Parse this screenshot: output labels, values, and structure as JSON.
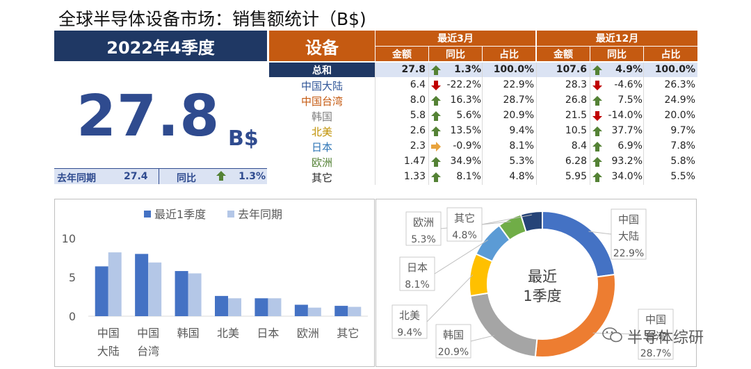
{
  "title": "全球半导体设备市场：销售额统计（B$)",
  "summary": {
    "period": "2022年4季度",
    "value": "27.8",
    "unit": "B$",
    "last_year_label": "去年同期",
    "last_year_value": "27.4",
    "yoy_label": "同比",
    "yoy_value": "1.3%"
  },
  "table": {
    "corner_label": "设备",
    "groups": [
      "最近3月",
      "最近12月"
    ],
    "subheaders": [
      "金额",
      "同比",
      "占比",
      "金额",
      "同比",
      "占比"
    ],
    "rows": [
      {
        "name": "总和",
        "color": "#ffffff",
        "q_val": "27.8",
        "q_dir": "up",
        "q_yoy": "1.3%",
        "q_share": "100.0%",
        "y_val": "107.6",
        "y_dir": "up",
        "y_yoy": "4.9%",
        "y_share": "100.0%"
      },
      {
        "name": "中国大陆",
        "color": "#2f5597",
        "q_val": "6.4",
        "q_dir": "down",
        "q_yoy": "-22.2%",
        "q_share": "22.9%",
        "y_val": "28.3",
        "y_dir": "down",
        "y_yoy": "-4.6%",
        "y_share": "26.3%"
      },
      {
        "name": "中国台湾",
        "color": "#c55a11",
        "q_val": "8.0",
        "q_dir": "up",
        "q_yoy": "16.3%",
        "q_share": "28.7%",
        "y_val": "26.8",
        "y_dir": "up",
        "y_yoy": "7.5%",
        "y_share": "24.9%"
      },
      {
        "name": "韩国",
        "color": "#7f7f7f",
        "q_val": "5.8",
        "q_dir": "up",
        "q_yoy": "5.6%",
        "q_share": "20.9%",
        "y_val": "21.5",
        "y_dir": "down",
        "y_yoy": "-14.0%",
        "y_share": "20.0%"
      },
      {
        "name": "北美",
        "color": "#bf9000",
        "q_val": "2.6",
        "q_dir": "up",
        "q_yoy": "13.5%",
        "q_share": "9.4%",
        "y_val": "10.5",
        "y_dir": "up",
        "y_yoy": "37.7%",
        "y_share": "9.7%"
      },
      {
        "name": "日本",
        "color": "#2e75b6",
        "q_val": "2.3",
        "q_dir": "side",
        "q_yoy": "-0.9%",
        "q_share": "8.1%",
        "y_val": "8.4",
        "y_dir": "up",
        "y_yoy": "6.9%",
        "y_share": "7.8%"
      },
      {
        "name": "欧洲",
        "color": "#548235",
        "q_val": "1.47",
        "q_dir": "up",
        "q_yoy": "34.9%",
        "q_share": "5.3%",
        "y_val": "6.28",
        "y_dir": "up",
        "y_yoy": "93.2%",
        "y_share": "5.8%"
      },
      {
        "name": "其它",
        "color": "#262626",
        "q_val": "1.33",
        "q_dir": "up",
        "q_yoy": "8.1%",
        "q_share": "4.8%",
        "y_val": "5.95",
        "y_dir": "up",
        "y_yoy": "34.0%",
        "y_share": "5.5%"
      }
    ]
  },
  "arrow_colors": {
    "up": "#548235",
    "down": "#c00000",
    "side": "#e8a33d"
  },
  "chart_data": [
    {
      "type": "bar",
      "categories": [
        "中国\n大陆",
        "中国\n台湾",
        "韩国",
        "北美",
        "日本",
        "欧洲",
        "其它"
      ],
      "series": [
        {
          "name": "最近1季度",
          "color": "#4472c4",
          "values": [
            6.4,
            8.0,
            5.8,
            2.6,
            2.3,
            1.47,
            1.33
          ]
        },
        {
          "name": "去年同期",
          "color": "#b4c7e7",
          "values": [
            8.2,
            6.9,
            5.5,
            2.3,
            2.3,
            1.1,
            1.2
          ]
        }
      ],
      "yticks": [
        0,
        5,
        10
      ],
      "ylim": [
        0,
        10
      ],
      "legend": "top"
    },
    {
      "type": "pie",
      "center_label": "最近\n1季度",
      "slices": [
        {
          "label": "中国\n大陆",
          "pct": "22.9%",
          "value": 22.9,
          "color": "#4472c4"
        },
        {
          "label": "中国\n台湾",
          "pct": "28.7%",
          "value": 28.7,
          "color": "#ed7d31"
        },
        {
          "label": "韩国",
          "pct": "20.9%",
          "value": 20.9,
          "color": "#a5a5a5"
        },
        {
          "label": "北美",
          "pct": "9.4%",
          "value": 9.4,
          "color": "#ffc000"
        },
        {
          "label": "日本",
          "pct": "8.1%",
          "value": 8.1,
          "color": "#5b9bd5"
        },
        {
          "label": "欧洲",
          "pct": "5.3%",
          "value": 5.3,
          "color": "#70ad47"
        },
        {
          "label": "其它",
          "pct": "4.8%",
          "value": 4.8,
          "color": "#264478"
        }
      ]
    }
  ],
  "watermark": "半导体综研"
}
